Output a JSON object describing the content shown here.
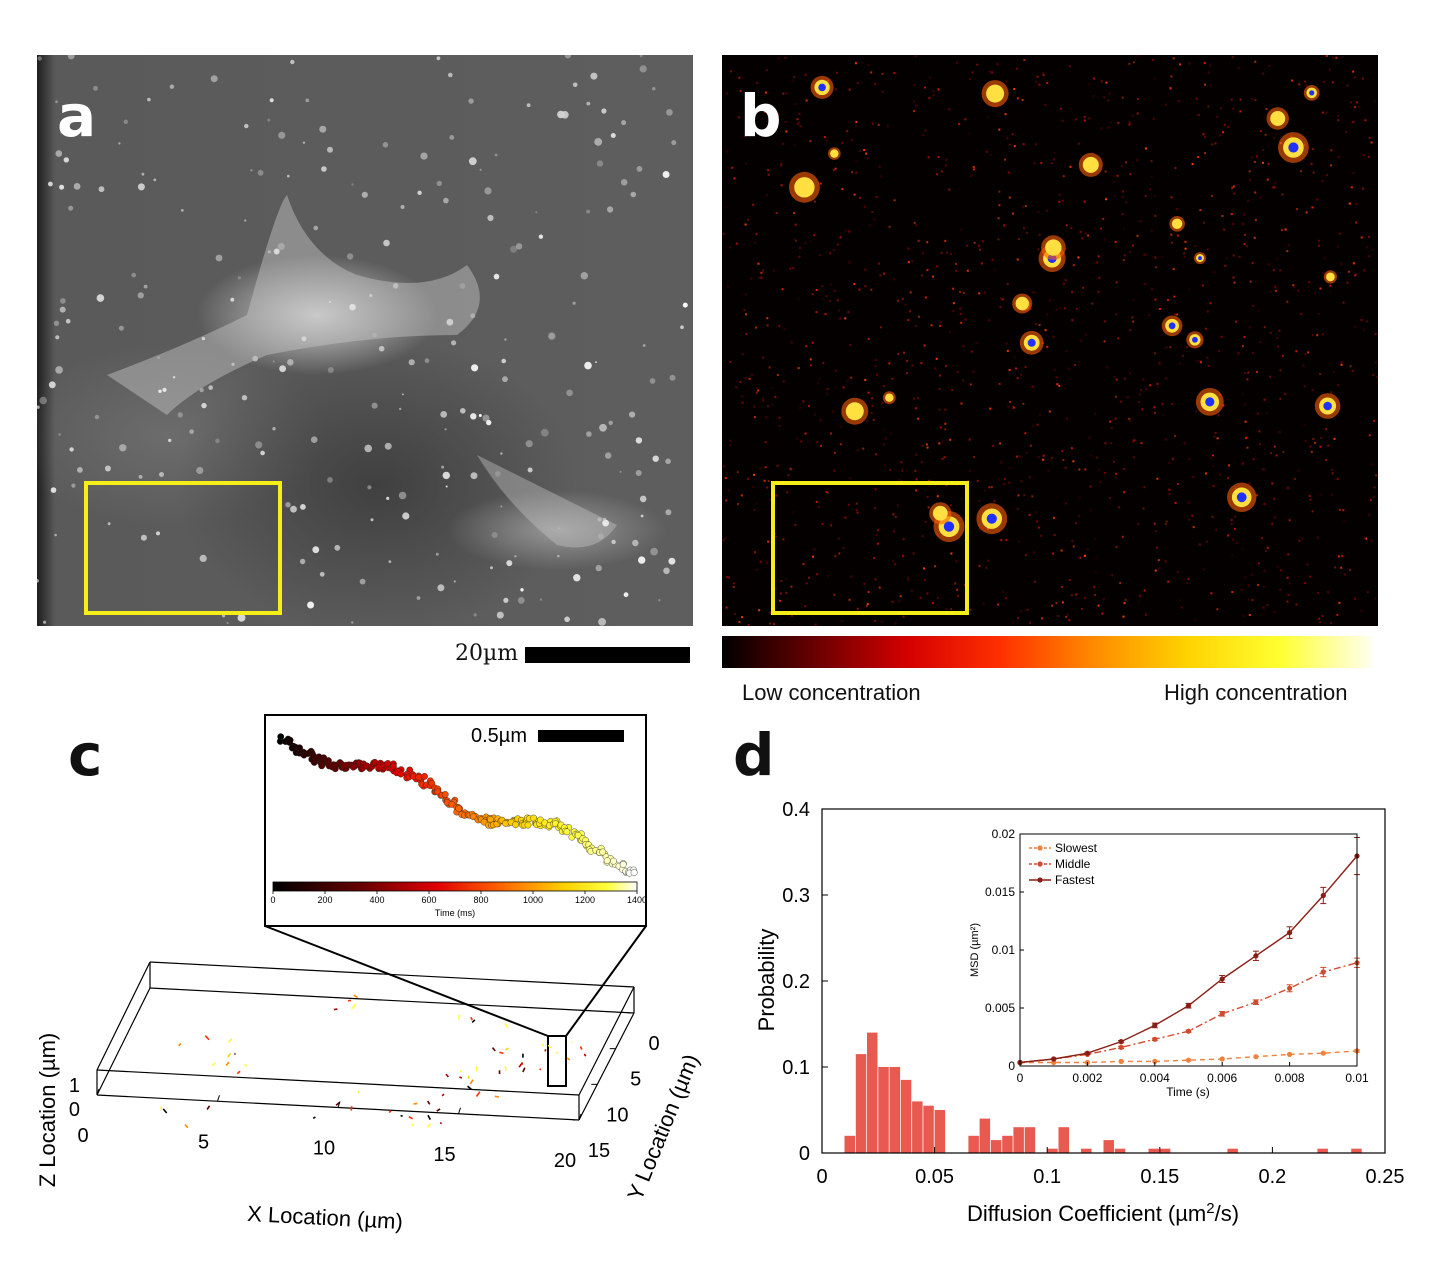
{
  "panels": {
    "a": {
      "letter": "a",
      "scale_label": "20µm"
    },
    "b": {
      "letter": "b",
      "colorbar": {
        "low_label": "Low concentration",
        "high_label": "High concentration",
        "stops": [
          "#000000",
          "#6a0000",
          "#d40000",
          "#ff3000",
          "#ff8a00",
          "#ffd200",
          "#ffff30",
          "#fffff0"
        ]
      }
    },
    "c": {
      "letter": "c",
      "inset": {
        "scale_label": "0.5µm",
        "colorbar_ticks": [
          "0",
          "200",
          "400",
          "600",
          "800",
          "1000",
          "1200",
          "1400"
        ],
        "colorbar_label": "Time (ms)"
      },
      "axes": {
        "x_label": "X Location (µm)",
        "y_label": "Y Location (µm)",
        "z_label": "Z Location (µm)",
        "x_ticks": [
          "0",
          "5",
          "10",
          "15",
          "20"
        ],
        "y_ticks": [
          "0",
          "5",
          "10",
          "15"
        ],
        "z_ticks": [
          "1",
          "0"
        ]
      }
    },
    "d": {
      "letter": "d"
    }
  },
  "colors": {
    "highlight_box": "#f5ee18",
    "bar": "#e8594f",
    "slowest": "#f0803c",
    "middle": "#d24a2e",
    "fastest": "#8a1e14"
  },
  "chart_data": [
    {
      "type": "bar",
      "title": "",
      "xlabel": "Diffusion Coefficient (µm²/s)",
      "ylabel": "Probability",
      "xlim": [
        0,
        0.25
      ],
      "ylim": [
        0,
        0.4
      ],
      "x_ticks": [
        "0",
        "0.05",
        "0.1",
        "0.15",
        "0.2",
        "0.25"
      ],
      "y_ticks": [
        "0",
        "0.1",
        "0.2",
        "0.3",
        "0.4"
      ],
      "bin_width": 0.005,
      "bins": [
        {
          "x": 0.0125,
          "y": 0.02
        },
        {
          "x": 0.0175,
          "y": 0.115
        },
        {
          "x": 0.0225,
          "y": 0.14
        },
        {
          "x": 0.0275,
          "y": 0.1
        },
        {
          "x": 0.0325,
          "y": 0.1
        },
        {
          "x": 0.0375,
          "y": 0.085
        },
        {
          "x": 0.0425,
          "y": 0.06
        },
        {
          "x": 0.0475,
          "y": 0.055
        },
        {
          "x": 0.0525,
          "y": 0.05
        },
        {
          "x": 0.0675,
          "y": 0.02
        },
        {
          "x": 0.0725,
          "y": 0.04
        },
        {
          "x": 0.0775,
          "y": 0.015
        },
        {
          "x": 0.0825,
          "y": 0.02
        },
        {
          "x": 0.0875,
          "y": 0.03
        },
        {
          "x": 0.0925,
          "y": 0.03
        },
        {
          "x": 0.1025,
          "y": 0.005
        },
        {
          "x": 0.1075,
          "y": 0.03
        },
        {
          "x": 0.1175,
          "y": 0.005
        },
        {
          "x": 0.1275,
          "y": 0.015
        },
        {
          "x": 0.1325,
          "y": 0.005
        },
        {
          "x": 0.1475,
          "y": 0.005
        },
        {
          "x": 0.1525,
          "y": 0.005
        },
        {
          "x": 0.1825,
          "y": 0.005
        },
        {
          "x": 0.2225,
          "y": 0.005
        },
        {
          "x": 0.2375,
          "y": 0.005
        }
      ]
    },
    {
      "type": "line",
      "title": "",
      "xlabel": "Time (s)",
      "ylabel": "MSD (µm²)",
      "xlim": [
        0,
        0.01
      ],
      "ylim": [
        0,
        0.02
      ],
      "x_ticks": [
        "0",
        "0.002",
        "0.004",
        "0.006",
        "0.008",
        "0.01"
      ],
      "y_ticks": [
        "0",
        "0.005",
        "0.01",
        "0.015",
        "0.02"
      ],
      "x": [
        0,
        0.001,
        0.002,
        0.003,
        0.004,
        0.005,
        0.006,
        0.007,
        0.008,
        0.009,
        0.01
      ],
      "legend_position": "top-left",
      "series": [
        {
          "name": "Slowest",
          "color_key": "slowest",
          "style": "dashed",
          "values": [
            0.0003,
            0.0003,
            0.0003,
            0.0004,
            0.0004,
            0.0005,
            0.0006,
            0.0008,
            0.001,
            0.0011,
            0.0013
          ],
          "errors": [
            0,
            0,
            0,
            0,
            0,
            0,
            0,
            0,
            0,
            0,
            0.0001
          ]
        },
        {
          "name": "Middle",
          "color_key": "middle",
          "style": "dashdot",
          "values": [
            0.0003,
            0.0006,
            0.001,
            0.0016,
            0.0023,
            0.003,
            0.0045,
            0.0055,
            0.0067,
            0.0081,
            0.0089
          ],
          "errors": [
            0,
            0,
            0,
            0.0001,
            0.0001,
            0.0001,
            0.0002,
            0.0002,
            0.0003,
            0.0004,
            0.0004
          ]
        },
        {
          "name": "Fastest",
          "color_key": "fastest",
          "style": "solid",
          "values": [
            0.0003,
            0.0006,
            0.0011,
            0.0021,
            0.0035,
            0.0052,
            0.0075,
            0.0095,
            0.0115,
            0.0147,
            0.0181
          ],
          "errors": [
            0,
            0,
            0.0001,
            0.0001,
            0.0002,
            0.0002,
            0.0003,
            0.0004,
            0.0005,
            0.0007,
            0.0016
          ]
        }
      ]
    }
  ]
}
